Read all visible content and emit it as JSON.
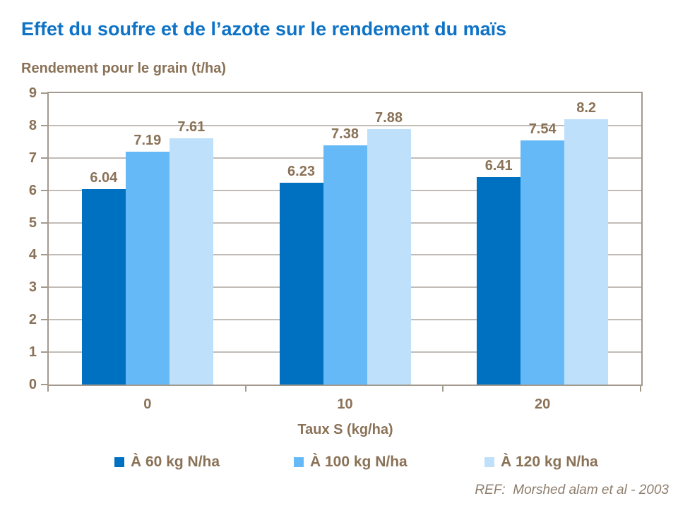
{
  "chart_data": {
    "type": "bar",
    "title": "Effet du soufre et de l’azote sur le rendement du maïs",
    "ylabel": "Rendement pour le grain (t/ha)",
    "xlabel": "Taux S (kg/ha)",
    "categories": [
      "0",
      "10",
      "20"
    ],
    "series": [
      {
        "name": "À 60 kg N/ha",
        "color": "#0070C0",
        "values": [
          6.04,
          6.23,
          6.41
        ]
      },
      {
        "name": "À 100 kg N/ha",
        "color": "#66B9F7",
        "values": [
          7.19,
          7.38,
          7.54
        ]
      },
      {
        "name": "À 120 kg N/ha",
        "color": "#BFE0FB",
        "values": [
          7.61,
          7.88,
          8.2
        ]
      }
    ],
    "ylim": [
      0,
      9
    ],
    "ytick_step": 1,
    "grid": true,
    "value_labels": true,
    "legend_position": "bottom"
  },
  "footer": {
    "ref": "REF:  Morshed alam et al - 2003"
  },
  "style": {
    "title_color": "#0E73C6",
    "text_color": "#8A7257",
    "axis_color": "#A39A8E",
    "grid_color": "#C2BCB6",
    "ref_color": "#8D7D6C",
    "background": "#FFFFFF"
  }
}
